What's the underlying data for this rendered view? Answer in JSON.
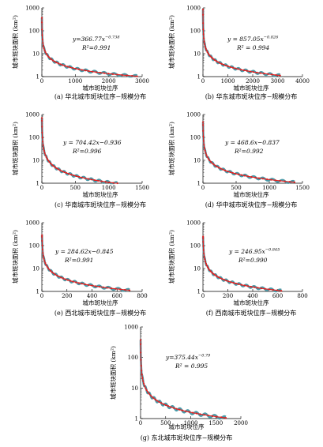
{
  "chart_data": [
    {
      "type": "scatter",
      "id": "a",
      "caption": "(a) 华北城市斑块位序−规模分布",
      "xlabel": "城市斑块位序",
      "ylabel": "城市斑块面积 (km²)",
      "xlim": [
        0,
        3000
      ],
      "xticks": [
        0,
        1000,
        2000,
        3000
      ],
      "ylim": [
        1,
        1000
      ],
      "yscale": "log",
      "yticks": [
        1,
        10,
        100,
        1000
      ],
      "n": 2850,
      "a": 366.77,
      "b": -0.738,
      "equation": "y=366.77x",
      "exponent": "−0.738",
      "r2": "R²=0.991",
      "series": [
        {
          "name": "observed",
          "color": "#4a9aa8"
        },
        {
          "name": "fit",
          "color": "#e02020"
        }
      ]
    },
    {
      "type": "scatter",
      "id": "b",
      "caption": "(b) 华东城市斑块位序−规模分布",
      "xlabel": "城市斑块位序",
      "ylabel": "城市斑块面积 (km²)",
      "xlim": [
        0,
        4000
      ],
      "xticks": [
        0,
        1000,
        2000,
        3000,
        4000
      ],
      "ylim": [
        1,
        1000
      ],
      "yscale": "log",
      "yticks": [
        1,
        10,
        100,
        1000
      ],
      "n": 3100,
      "a": 857.05,
      "b": -0.826,
      "equation": "y = 857.05x",
      "exponent": "−0.826",
      "r2": "R² = 0.994",
      "series": [
        {
          "name": "observed",
          "color": "#4a9aa8"
        },
        {
          "name": "fit",
          "color": "#e02020"
        }
      ]
    },
    {
      "type": "scatter",
      "id": "c",
      "caption": "(c) 华南城市斑块位序−规模分布",
      "xlabel": "城市斑块位序",
      "ylabel": "城市斑块面积 (km²)",
      "xlim": [
        0,
        1500
      ],
      "xticks": [
        0,
        500,
        1000,
        1500
      ],
      "ylim": [
        1,
        1000
      ],
      "yscale": "log",
      "yticks": [
        1,
        10,
        100,
        1000
      ],
      "n": 1130,
      "a": 704.42,
      "b": -0.936,
      "equation": "y = 704.42x−0.936",
      "exponent": "",
      "r2": "R²=0.996",
      "series": [
        {
          "name": "observed",
          "color": "#4a9aa8"
        },
        {
          "name": "fit",
          "color": "#e02020"
        }
      ]
    },
    {
      "type": "scatter",
      "id": "d",
      "caption": "(d) 华中城市斑块位序−规模分布",
      "xlabel": "城市斑块位序",
      "ylabel": "城市斑块面积 (km²)",
      "xlim": [
        0,
        1500
      ],
      "xticks": [
        0,
        500,
        1000,
        1500
      ],
      "ylim": [
        1,
        1000
      ],
      "yscale": "log",
      "yticks": [
        1,
        10,
        100,
        1000
      ],
      "n": 1380,
      "a": 468.6,
      "b": -0.837,
      "equation": "y = 468.6x−0.837",
      "exponent": "",
      "r2": "R²=0.992",
      "series": [
        {
          "name": "observed",
          "color": "#4a9aa8"
        },
        {
          "name": "fit",
          "color": "#e02020"
        }
      ]
    },
    {
      "type": "scatter",
      "id": "e",
      "caption": "(e) 西北城市斑块位序−规模分布",
      "xlabel": "城市斑块位序",
      "ylabel": "城市斑块面积 (km²)",
      "xlim": [
        0,
        800
      ],
      "xticks": [
        0,
        200,
        400,
        600,
        800
      ],
      "ylim": [
        1,
        1000
      ],
      "yscale": "log",
      "yticks": [
        1,
        10,
        100,
        1000
      ],
      "n": 700,
      "a": 284.62,
      "b": -0.845,
      "equation": "y = 284.62x−0.845",
      "exponent": "",
      "r2": "R²=0.991",
      "series": [
        {
          "name": "observed",
          "color": "#4a9aa8"
        },
        {
          "name": "fit",
          "color": "#e02020"
        }
      ]
    },
    {
      "type": "scatter",
      "id": "f",
      "caption": "(f) 西南城市斑块位序−规模分布",
      "xlabel": "城市斑块位序",
      "ylabel": "城市斑块面积 (km²)",
      "xlim": [
        0,
        800
      ],
      "xticks": [
        0,
        200,
        400,
        600,
        800
      ],
      "ylim": [
        1,
        1000
      ],
      "yscale": "log",
      "yticks": [
        1,
        10,
        100,
        1000
      ],
      "n": 630,
      "a": 246.95,
      "b": -0.845,
      "equation": "y = 246.95x",
      "exponent": "−0.845",
      "r2": "R²=0.990",
      "series": [
        {
          "name": "observed",
          "color": "#4a9aa8"
        },
        {
          "name": "fit",
          "color": "#e02020"
        }
      ]
    },
    {
      "type": "scatter",
      "id": "g",
      "caption": "(g) 东北城市斑块位序−规模分布",
      "xlabel": "城市斑块位序",
      "ylabel": "城市斑块面积 (km²)",
      "xlim": [
        0,
        2000
      ],
      "xticks": [
        0,
        500,
        1000,
        1500,
        2000
      ],
      "ylim": [
        1,
        1000
      ],
      "yscale": "log",
      "yticks": [
        1,
        10,
        100,
        1000
      ],
      "n": 1700,
      "a": 375.44,
      "b": -0.79,
      "equation": "y=375.44x",
      "exponent": "−0.79",
      "r2": "R² = 0.995",
      "series": [
        {
          "name": "observed",
          "color": "#4a9aa8"
        },
        {
          "name": "fit",
          "color": "#e02020"
        }
      ]
    }
  ]
}
